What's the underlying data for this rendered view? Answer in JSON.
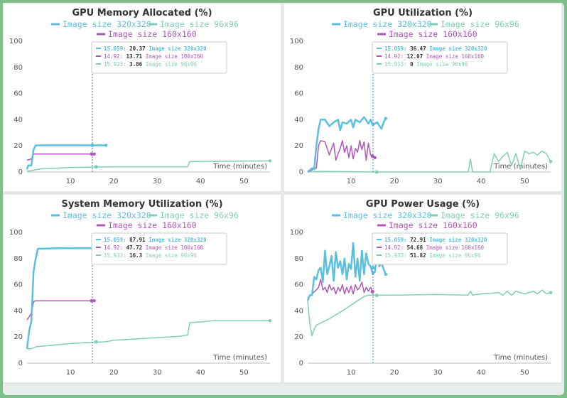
{
  "chart_data": [
    {
      "type": "line",
      "title": "GPU Memory Allocated (%)",
      "xlabel": "Time (minutes)",
      "ylabel": "",
      "xlim": [
        0,
        56
      ],
      "ylim": [
        0,
        100
      ],
      "xticks": [
        10,
        20,
        30,
        40,
        50
      ],
      "yticks": [
        0,
        20,
        40,
        60,
        80,
        100
      ],
      "cursor_x": 15.059,
      "series": [
        {
          "name": "Image size 320x320",
          "color": "#5bc0de",
          "x": [
            0,
            0.3,
            1,
            1.5,
            2,
            2.5,
            18.2
          ],
          "y": [
            2,
            5,
            5,
            17,
            20.4,
            20.4,
            20.4
          ]
        },
        {
          "name": "Image size 96x96",
          "color": "#7fcfb7",
          "x": [
            0,
            3,
            10,
            16,
            20,
            37,
            37.5,
            56
          ],
          "y": [
            0.5,
            2.3,
            3.5,
            3.8,
            4,
            4,
            8,
            8.5
          ]
        },
        {
          "name": "Image size 160x160",
          "color": "#b058b8",
          "x": [
            0,
            1,
            1.5,
            15.5
          ],
          "y": [
            9,
            10,
            13.7,
            13.7
          ]
        }
      ],
      "tooltip": [
        {
          "x": "15.059",
          "value": "20.37",
          "name": "Image size 320x320"
        },
        {
          "x": "14.92",
          "value": "13.71",
          "name": "Image size 160x160"
        },
        {
          "x": "15.933",
          "value": "3.86",
          "name": "Image size 96x96"
        }
      ]
    },
    {
      "type": "line",
      "title": "GPU Utilization (%)",
      "xlabel": "Time (minutes)",
      "ylabel": "",
      "xlim": [
        0,
        56
      ],
      "ylim": [
        0,
        100
      ],
      "xticks": [
        10,
        20,
        30,
        40,
        50
      ],
      "yticks": [
        0,
        20,
        40,
        60,
        80,
        100
      ],
      "cursor_x": 15.059,
      "series": [
        {
          "name": "Image size 320x320",
          "color": "#5bc0de",
          "x": [
            0,
            1,
            1.5,
            2,
            2.5,
            3,
            4,
            5,
            6,
            7,
            7.5,
            8,
            9,
            10,
            10.5,
            11,
            12,
            13,
            14,
            14.5,
            15,
            16,
            17,
            17.5,
            18
          ],
          "y": [
            0,
            3,
            2,
            20,
            33,
            40,
            40,
            35,
            38,
            40,
            32,
            38,
            37,
            40,
            34,
            40,
            38,
            42,
            37,
            40,
            36,
            38,
            33,
            38,
            41
          ]
        },
        {
          "name": "Image size 96x96",
          "color": "#7fcfb7",
          "x": [
            0,
            3,
            15,
            16,
            37,
            37.5,
            38,
            42,
            43,
            44,
            45,
            46,
            47,
            48,
            49,
            50,
            51,
            52,
            53,
            54,
            55,
            56
          ],
          "y": [
            0,
            0.5,
            0,
            0,
            0,
            10,
            0,
            0,
            14,
            8,
            12,
            15,
            5,
            14,
            2,
            16,
            14,
            15,
            13,
            16,
            14,
            8
          ]
        },
        {
          "name": "Image size 160x160",
          "color": "#b058b8",
          "x": [
            0,
            2,
            2.5,
            3,
            4,
            5,
            5.5,
            6,
            6.5,
            7,
            7.5,
            8,
            8.5,
            9,
            9.5,
            10,
            10.5,
            11,
            11.5,
            12,
            12.5,
            13,
            13.5,
            14,
            14.5,
            15,
            15.5
          ],
          "y": [
            0,
            3,
            20,
            24,
            23,
            13,
            18,
            22,
            9,
            14,
            18,
            24,
            15,
            20,
            11,
            20,
            10,
            18,
            15,
            24,
            17,
            23,
            9,
            22,
            13,
            12,
            11
          ]
        }
      ],
      "tooltip": [
        {
          "x": "15.059",
          "value": "36.47",
          "name": "Image size 320x320"
        },
        {
          "x": "14.92",
          "value": "12.07",
          "name": "Image size 160x160"
        },
        {
          "x": "15.933",
          "value": "0",
          "name": "Image size 96x96"
        }
      ]
    },
    {
      "type": "line",
      "title": "System Memory Utilization (%)",
      "xlabel": "Time (minutes)",
      "ylabel": "",
      "xlim": [
        0,
        56
      ],
      "ylim": [
        0,
        100
      ],
      "xticks": [
        10,
        20,
        30,
        40,
        50
      ],
      "yticks": [
        0,
        20,
        40,
        60,
        80,
        100
      ],
      "cursor_x": 15.059,
      "series": [
        {
          "name": "Image size 320x320",
          "color": "#5bc0de",
          "x": [
            0,
            0.5,
            1,
            1.5,
            2,
            2.5,
            8,
            15.5
          ],
          "y": [
            11,
            25,
            32,
            70,
            80,
            87.5,
            88,
            87.9
          ]
        },
        {
          "name": "Image size 96x96",
          "color": "#7fcfb7",
          "x": [
            0,
            1,
            2,
            5,
            10,
            15,
            18,
            20,
            25,
            30,
            35,
            37,
            37.5,
            40,
            43,
            50,
            56
          ],
          "y": [
            11,
            11,
            12.5,
            13.5,
            15,
            16,
            16.3,
            17.5,
            18.5,
            19.5,
            20.5,
            21.5,
            31,
            31.5,
            32.5,
            32.5,
            32.5
          ]
        },
        {
          "name": "Image size 160x160",
          "color": "#b058b8",
          "x": [
            0,
            1,
            1.5,
            2,
            15.5
          ],
          "y": [
            33,
            38,
            47,
            47.7,
            47.7
          ]
        }
      ],
      "tooltip": [
        {
          "x": "15.059",
          "value": "87.91",
          "name": "Image size 320x320"
        },
        {
          "x": "14.92",
          "value": "47.72",
          "name": "Image size 160x160"
        },
        {
          "x": "15.933",
          "value": "16.3",
          "name": "Image size 96x96"
        }
      ]
    },
    {
      "type": "line",
      "title": "GPU Power Usage (%)",
      "xlabel": "Time (minutes)",
      "ylabel": "",
      "xlim": [
        0,
        56
      ],
      "ylim": [
        0,
        100
      ],
      "xticks": [
        10,
        20,
        30,
        40,
        50
      ],
      "yticks": [
        0,
        20,
        40,
        60,
        80,
        100
      ],
      "cursor_x": 15.059,
      "series": [
        {
          "name": "Image size 320x320",
          "color": "#5bc0de",
          "x": [
            0,
            0.5,
            1,
            1.5,
            2,
            2.5,
            3,
            3.5,
            4,
            4.5,
            5,
            5.5,
            6,
            6.5,
            7,
            7.5,
            8,
            8.5,
            9,
            9.5,
            10,
            10.5,
            11,
            11.5,
            12,
            12.5,
            13,
            13.5,
            14,
            14.5,
            15,
            15.5,
            16,
            16.5,
            17,
            17.5,
            18
          ],
          "y": [
            48,
            52,
            52,
            66,
            64,
            71,
            73,
            62,
            86,
            68,
            74,
            82,
            63,
            85,
            73,
            78,
            68,
            80,
            64,
            76,
            72,
            92,
            66,
            80,
            63,
            86,
            68,
            84,
            76,
            74,
            68,
            70,
            83,
            74,
            77,
            72,
            68
          ]
        },
        {
          "name": "Image size 96x96",
          "color": "#7fcfb7",
          "x": [
            0,
            0.5,
            1,
            1.5,
            2,
            5,
            8,
            13,
            14,
            20,
            30,
            37,
            37.5,
            38,
            40,
            44,
            45,
            46,
            47,
            48,
            50,
            52,
            53,
            54,
            55,
            56
          ],
          "y": [
            48,
            30,
            21,
            26,
            29,
            34,
            40,
            51,
            52,
            52,
            52.5,
            52,
            55,
            52,
            53,
            54,
            52,
            55,
            52,
            55,
            53,
            55,
            53,
            56,
            53,
            54
          ]
        },
        {
          "name": "Image size 160x160",
          "color": "#b058b8",
          "x": [
            0,
            1,
            2,
            2.5,
            3,
            3.5,
            4,
            4.5,
            5,
            5.5,
            6,
            6.5,
            7,
            7.5,
            8,
            8.5,
            9,
            9.5,
            10,
            10.5,
            11,
            11.5,
            12,
            12.5,
            13,
            13.5,
            14,
            14.5,
            15
          ],
          "y": [
            50,
            53,
            56,
            58,
            64,
            56,
            58,
            54,
            60,
            56,
            58,
            53,
            58,
            55,
            60,
            53,
            58,
            54,
            59,
            53,
            60,
            56,
            58,
            62,
            54,
            58,
            55,
            58,
            54.7
          ]
        }
      ],
      "tooltip": [
        {
          "x": "15.059",
          "value": "72.91",
          "name": "Image size 320x320"
        },
        {
          "x": "14.92",
          "value": "54.68",
          "name": "Image size 160x160"
        },
        {
          "x": "15.933",
          "value": "51.82",
          "name": "Image size 96x96"
        }
      ]
    }
  ]
}
